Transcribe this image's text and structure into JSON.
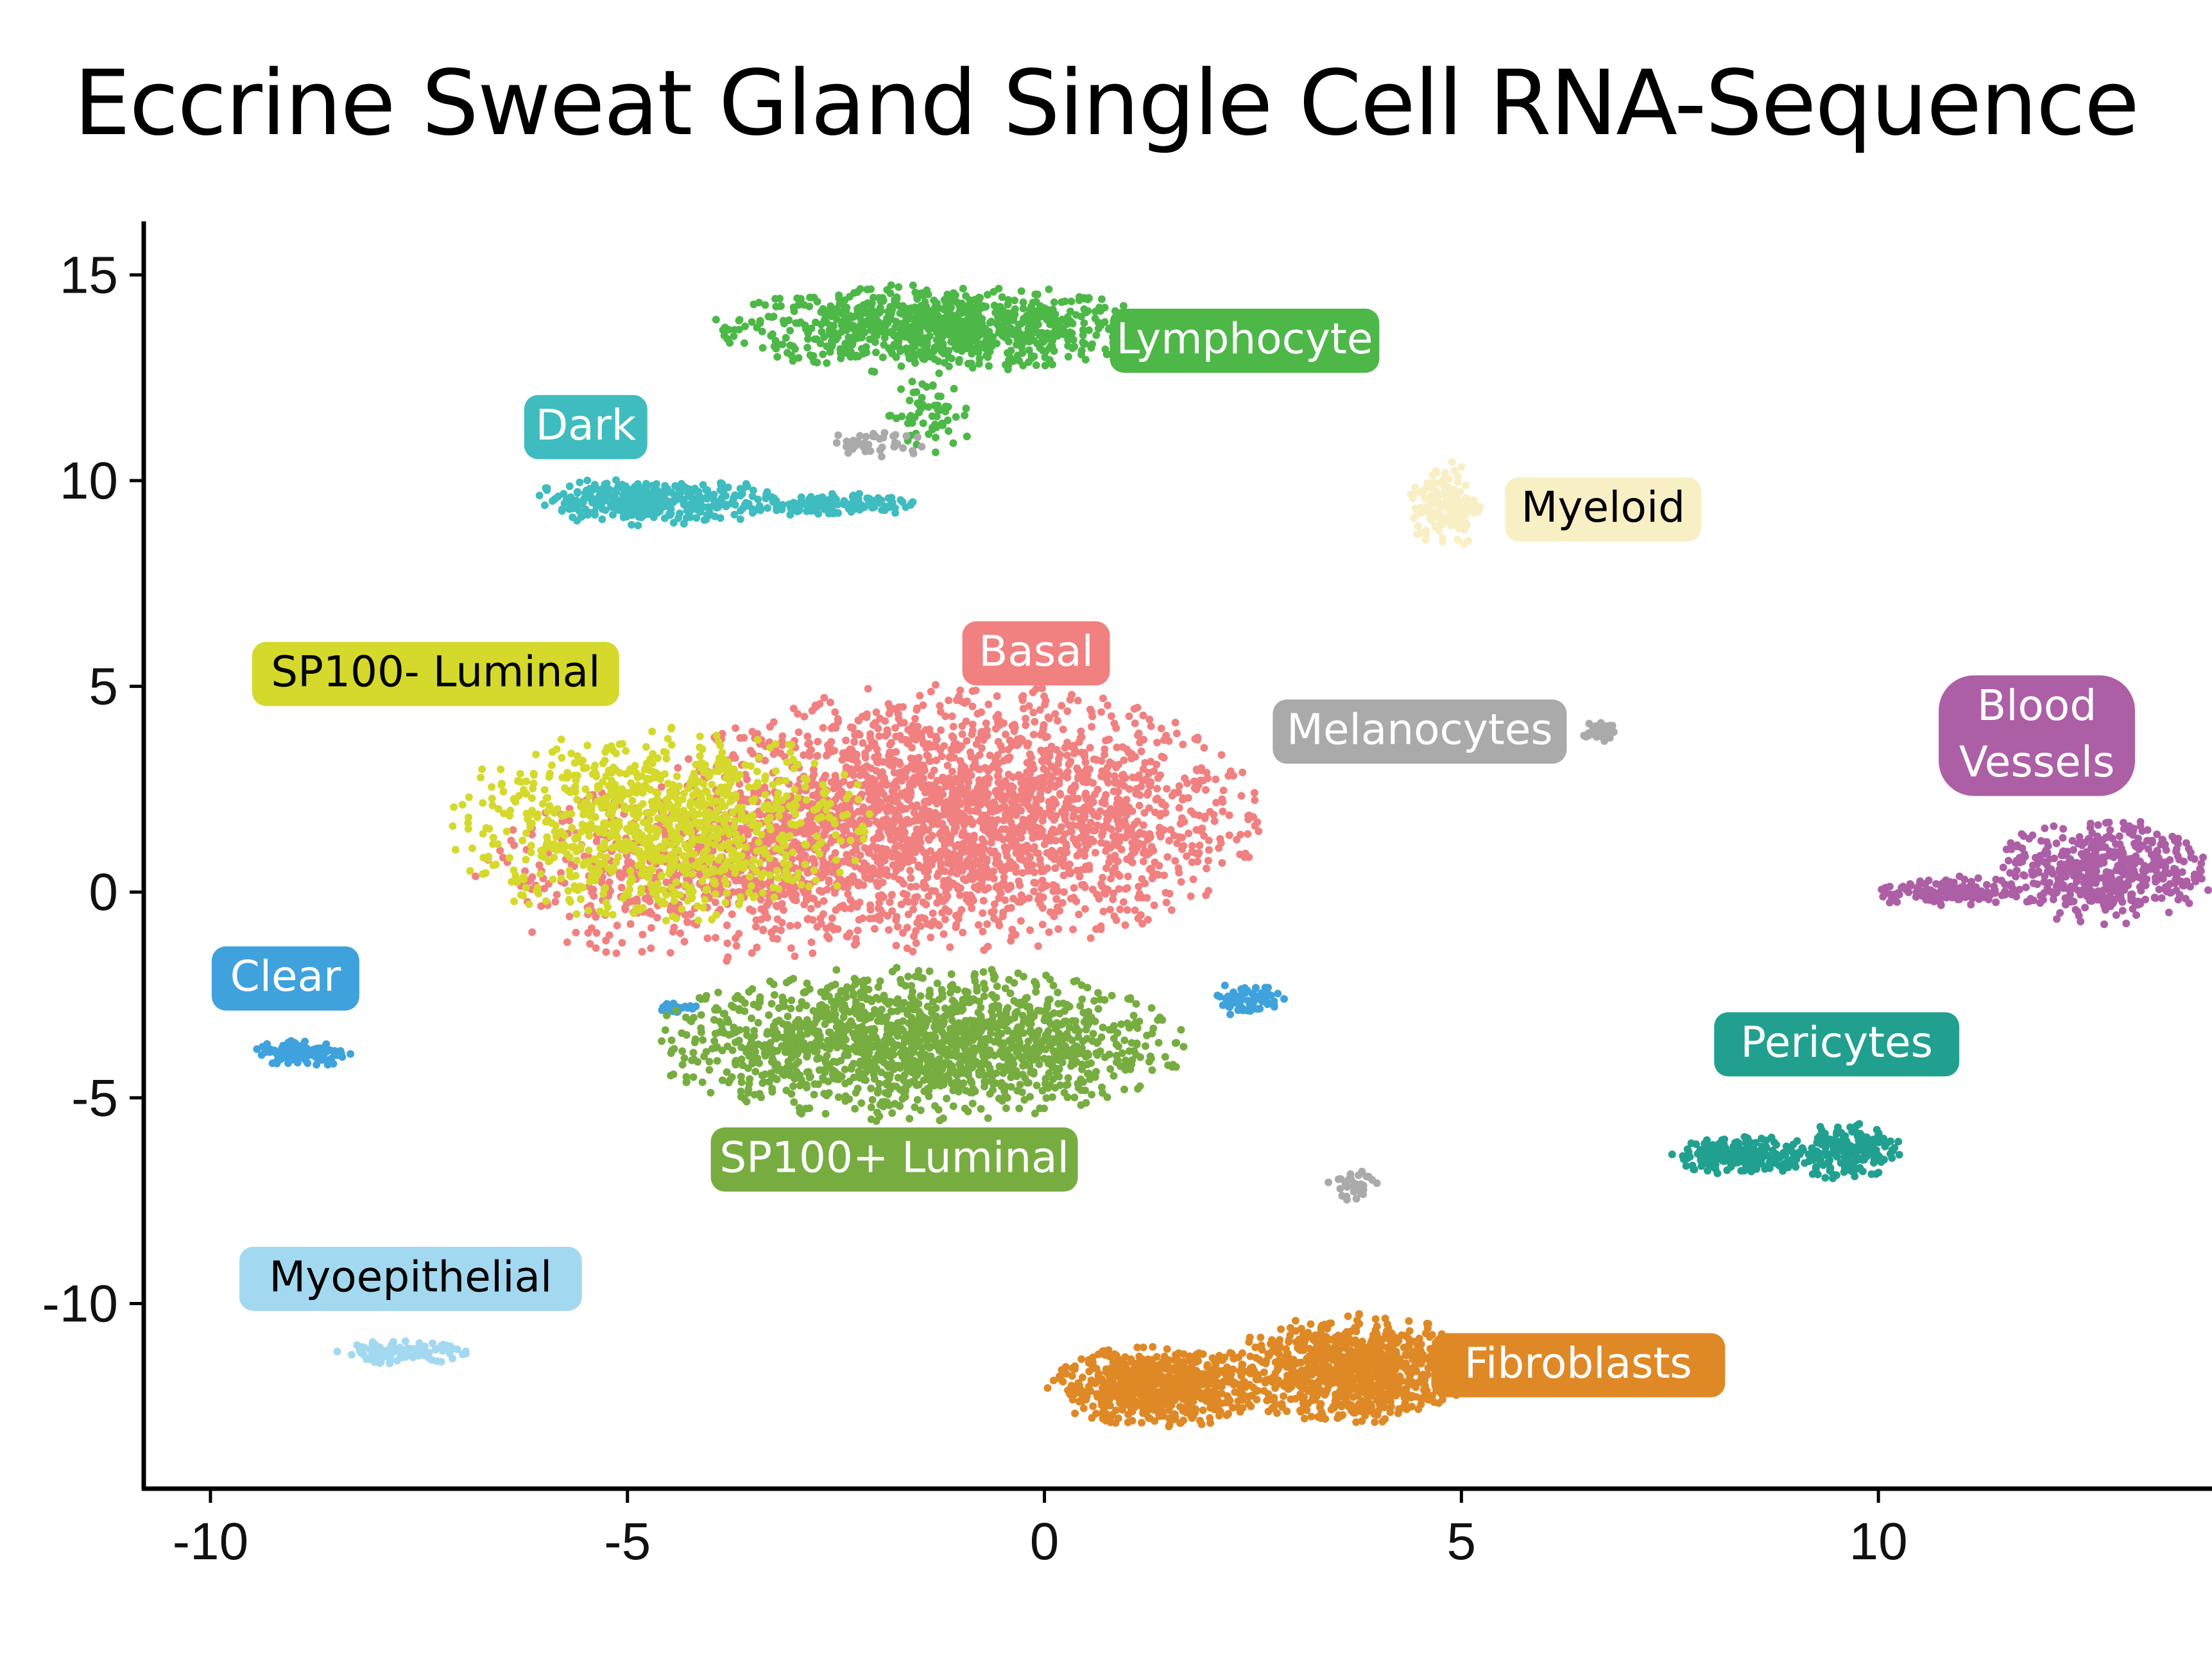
{
  "chart_data": {
    "type": "scatter",
    "title": "Eccrine Sweat Gland Single Cell RNA-Sequence",
    "xlabel": "",
    "ylabel": "",
    "xlim": [
      -10.8,
      14
    ],
    "ylim": [
      -14.5,
      16.3
    ],
    "x_ticks": [
      -10,
      -5,
      0,
      5,
      10
    ],
    "y_ticks": [
      15,
      10,
      5,
      0,
      -5,
      -10
    ],
    "x_tick_labels": [
      "-10",
      "-5",
      "0",
      "5",
      "10"
    ],
    "y_tick_labels": [
      "15",
      "10",
      "5",
      "0",
      "-5",
      "-10"
    ],
    "grid": false,
    "legend": "none",
    "clusters": [
      {
        "name": "Lymphocyte",
        "label": "Lymphocyte",
        "color": "#4db848",
        "text_color": "#ffffff",
        "blobs": [
          {
            "cx": -1.3,
            "cy": 13.7,
            "rx": 2.7,
            "ry": 1.1,
            "n": 900
          },
          {
            "cx": -1.4,
            "cy": 11.6,
            "rx": 0.6,
            "ry": 1.0,
            "n": 60
          }
        ],
        "label_pos": [
          2.4,
          13.4
        ]
      },
      {
        "name": "Dark",
        "label": "Dark",
        "color": "#3fbcbf",
        "text_color": "#ffffff",
        "blobs": [
          {
            "cx": -4.7,
            "cy": 9.5,
            "rx": 1.6,
            "ry": 0.6,
            "n": 350
          },
          {
            "cx": -2.6,
            "cy": 9.4,
            "rx": 1.2,
            "ry": 0.3,
            "n": 120
          }
        ],
        "label_pos": [
          -5.5,
          11.3
        ]
      },
      {
        "name": "Myeloid",
        "label": "Myeloid",
        "color": "#f8efc4",
        "text_color": "#000000",
        "blobs": [
          {
            "cx": 4.8,
            "cy": 9.4,
            "rx": 0.45,
            "ry": 1.1,
            "n": 160
          }
        ],
        "label_pos": [
          6.7,
          9.3
        ]
      },
      {
        "name": "Basal",
        "label": "Basal",
        "color": "#f18080",
        "text_color": "#ffffff",
        "blobs": [
          {
            "cx": -1.0,
            "cy": 1.8,
            "rx": 3.7,
            "ry": 3.3,
            "n": 2400
          },
          {
            "cx": -4.0,
            "cy": 0.5,
            "rx": 2.9,
            "ry": 2.2,
            "n": 600
          }
        ],
        "label_pos": [
          -0.1,
          5.8
        ]
      },
      {
        "name": "SP100- Luminal",
        "label": "SP100- Luminal",
        "color": "#d4d92c",
        "text_color": "#000000",
        "blobs": [
          {
            "cx": -4.6,
            "cy": 1.6,
            "rx": 2.6,
            "ry": 2.5,
            "n": 1000
          }
        ],
        "label_pos": [
          -7.3,
          5.3
        ]
      },
      {
        "name": "Melanocytes",
        "label": "Melanocytes",
        "color": "#aaaaaa",
        "text_color": "#ffffff",
        "blobs": [
          {
            "cx": 6.65,
            "cy": 3.9,
            "rx": 0.22,
            "ry": 0.25,
            "n": 40
          },
          {
            "cx": 3.7,
            "cy": -7.1,
            "rx": 0.3,
            "ry": 0.4,
            "n": 30
          },
          {
            "cx": -2.0,
            "cy": 10.9,
            "rx": 0.6,
            "ry": 0.4,
            "n": 40
          }
        ],
        "label_pos": [
          4.5,
          3.9
        ]
      },
      {
        "name": "Blood Vessels",
        "label": "Blood Vessels",
        "color": "#ad5fa6",
        "text_color": "#ffffff",
        "blobs": [
          {
            "cx": 12.7,
            "cy": 0.5,
            "rx": 1.4,
            "ry": 1.3,
            "n": 500
          },
          {
            "cx": 10.8,
            "cy": 0.0,
            "rx": 0.9,
            "ry": 0.4,
            "n": 120
          }
        ],
        "label_pos": [
          11.9,
          3.8
        ]
      },
      {
        "name": "Clear",
        "label": "Clear",
        "color": "#3fa2dd",
        "text_color": "#ffffff",
        "blobs": [
          {
            "cx": -8.9,
            "cy": -3.9,
            "rx": 0.6,
            "ry": 0.35,
            "n": 130
          },
          {
            "cx": -4.4,
            "cy": -2.8,
            "rx": 0.3,
            "ry": 0.15,
            "n": 30
          },
          {
            "cx": 2.4,
            "cy": -2.6,
            "rx": 0.5,
            "ry": 0.4,
            "n": 70
          }
        ],
        "label_pos": [
          -9.1,
          -2.1
        ]
      },
      {
        "name": "SP100+ Luminal",
        "label": "SP100+ Luminal",
        "color": "#77ad40",
        "text_color": "#ffffff",
        "blobs": [
          {
            "cx": -1.5,
            "cy": -3.7,
            "rx": 3.3,
            "ry": 1.9,
            "n": 1600
          }
        ],
        "label_pos": [
          -1.8,
          -6.5
        ]
      },
      {
        "name": "Pericytes",
        "label": "Pericytes",
        "color": "#21a090",
        "text_color": "#ffffff",
        "blobs": [
          {
            "cx": 8.4,
            "cy": -6.4,
            "rx": 0.9,
            "ry": 0.5,
            "n": 220
          },
          {
            "cx": 9.6,
            "cy": -6.3,
            "rx": 0.7,
            "ry": 0.7,
            "n": 200
          }
        ],
        "label_pos": [
          9.5,
          -3.7
        ]
      },
      {
        "name": "Myoepithelial",
        "label": "Myoepithelial",
        "color": "#a3d9f0",
        "text_color": "#000000",
        "blobs": [
          {
            "cx": -7.7,
            "cy": -11.2,
            "rx": 0.8,
            "ry": 0.3,
            "n": 120
          }
        ],
        "label_pos": [
          -7.6,
          -9.4
        ]
      },
      {
        "name": "Fibroblasts",
        "label": "Fibroblasts",
        "color": "#df8926",
        "text_color": "#ffffff",
        "blobs": [
          {
            "cx": 1.4,
            "cy": -12.0,
            "rx": 1.4,
            "ry": 1.0,
            "n": 700
          },
          {
            "cx": 3.7,
            "cy": -11.6,
            "rx": 1.5,
            "ry": 1.4,
            "n": 900
          }
        ],
        "label_pos": [
          6.4,
          -11.5
        ]
      }
    ]
  }
}
